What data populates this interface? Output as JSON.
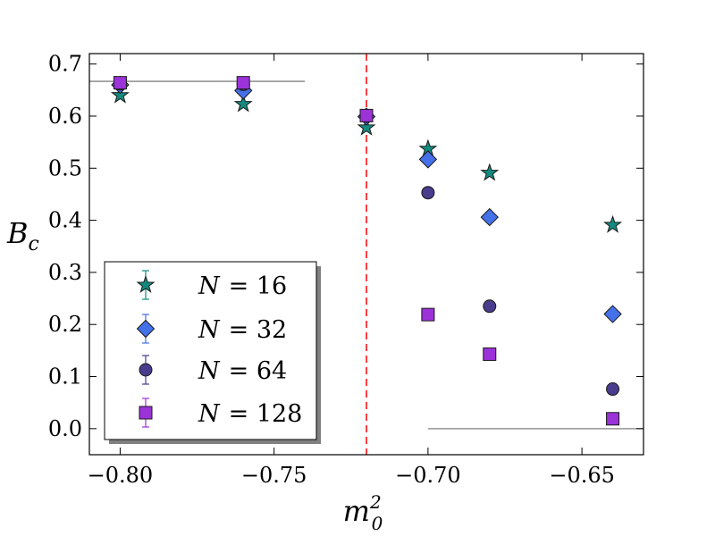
{
  "chart_data": {
    "type": "scatter",
    "title": "",
    "xlabel": "m",
    "xlabel_sub": "0",
    "xlabel_sup": "2",
    "ylabel": "B",
    "ylabel_sub": "c",
    "xlim": [
      -0.81,
      -0.63
    ],
    "ylim": [
      -0.05,
      0.72
    ],
    "x_ticks": [
      -0.8,
      -0.75,
      -0.7,
      -0.65
    ],
    "x_tick_labels": [
      "−0.80",
      "−0.75",
      "−0.70",
      "−0.65"
    ],
    "y_ticks": [
      0.0,
      0.1,
      0.2,
      0.3,
      0.4,
      0.5,
      0.6,
      0.7
    ],
    "y_tick_labels": [
      "0.0",
      "0.1",
      "0.2",
      "0.3",
      "0.4",
      "0.5",
      "0.6",
      "0.7"
    ],
    "legend_position": "lower-left",
    "series": [
      {
        "name": "N = 16",
        "label_var": "N",
        "label_eq": "= 16",
        "marker": "star",
        "color": "#138a7e",
        "x": [
          -0.8,
          -0.76,
          -0.72,
          -0.7,
          -0.68,
          -0.64
        ],
        "y": [
          0.64,
          0.623,
          0.578,
          0.537,
          0.491,
          0.391
        ]
      },
      {
        "name": "N = 32",
        "label_var": "N",
        "label_eq": "= 32",
        "marker": "diamond",
        "color": "#4470e8",
        "x": [
          -0.8,
          -0.76,
          -0.72,
          -0.7,
          -0.68,
          -0.64
        ],
        "y": [
          0.66,
          0.649,
          0.599,
          0.517,
          0.406,
          0.22
        ]
      },
      {
        "name": "N = 64",
        "label_var": "N",
        "label_eq": "= 64",
        "marker": "circle",
        "color": "#4a3c8c",
        "x": [
          -0.8,
          -0.76,
          -0.72,
          -0.7,
          -0.68,
          -0.64
        ],
        "y": [
          0.662,
          0.661,
          0.6,
          0.453,
          0.235,
          0.076
        ]
      },
      {
        "name": "N = 128",
        "label_var": "N",
        "label_eq": "= 128",
        "marker": "square",
        "color": "#9b33d9",
        "x": [
          -0.8,
          -0.76,
          -0.72,
          -0.7,
          -0.68,
          -0.64
        ],
        "y": [
          0.664,
          0.664,
          0.601,
          0.219,
          0.143,
          0.019
        ]
      }
    ],
    "reference_lines": [
      {
        "kind": "horizontal",
        "y": 0.6667,
        "x_from": -0.81,
        "x_to": -0.74,
        "color": "#808080",
        "style": "solid"
      },
      {
        "kind": "horizontal",
        "y": 0.0,
        "x_from": -0.7,
        "x_to": -0.63,
        "color": "#808080",
        "style": "solid"
      },
      {
        "kind": "vertical",
        "x": -0.72,
        "color": "#ff0000",
        "style": "dashed"
      }
    ]
  }
}
